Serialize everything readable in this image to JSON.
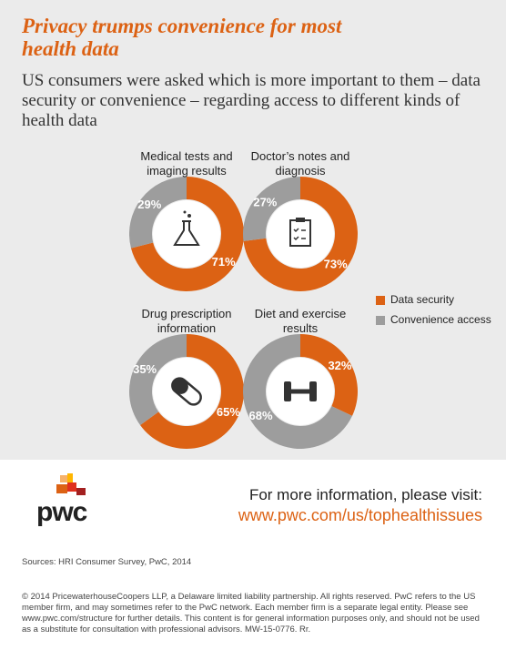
{
  "title": "Privacy trumps convenience for most health data",
  "subtitle": "US consumers were asked which is more important to them – data security or convenience – regarding access to different kinds of health data",
  "chart_data": [
    {
      "type": "pie",
      "title": "Medical tests and imaging results",
      "categories": [
        "Data security",
        "Convenience access"
      ],
      "values": [
        71,
        29
      ],
      "value_labels": [
        "71%",
        "29%"
      ],
      "colors": [
        "#dc6214",
        "#9d9d9d"
      ]
    },
    {
      "type": "pie",
      "title": "Doctor’s notes and diagnosis",
      "categories": [
        "Data security",
        "Convenience access"
      ],
      "values": [
        73,
        27
      ],
      "value_labels": [
        "73%",
        "27%"
      ],
      "colors": [
        "#dc6214",
        "#9d9d9d"
      ]
    },
    {
      "type": "pie",
      "title": "Drug prescription information",
      "categories": [
        "Data security",
        "Convenience access"
      ],
      "values": [
        65,
        35
      ],
      "value_labels": [
        "65%",
        "35%"
      ],
      "colors": [
        "#dc6214",
        "#9d9d9d"
      ]
    },
    {
      "type": "pie",
      "title": "Diet and exercise results",
      "categories": [
        "Data security",
        "Convenience access"
      ],
      "values": [
        32,
        68
      ],
      "value_labels": [
        "32%",
        "68%"
      ],
      "colors": [
        "#dc6214",
        "#9d9d9d"
      ]
    }
  ],
  "footer": {
    "logo": "pwc",
    "info": "For more information, please visit:",
    "url": "www.pwc.com/us/tophealthissues",
    "sources": "Sources: HRI Consumer Survey, PwC, 2014",
    "copyright": "© 2014 PricewaterhouseCoopers LLP, a Delaware limited liability partnership. All rights reserved. PwC refers to the US member firm, and may sometimes refer to the PwC network. Each member firm is a separate legal entity. Please see www.pwc.com/structure for further details. This content is for general information purposes only, and should not be used as a substitute for consultation with professional advisors. MW-15-0776. Rr."
  }
}
